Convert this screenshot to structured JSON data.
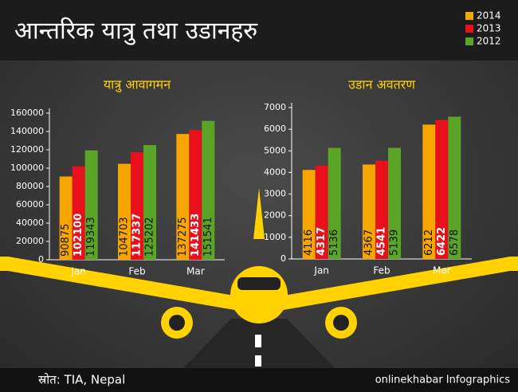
{
  "title": "आन्तरिक यात्रु तथा उडानहरु",
  "chart_data": [
    {
      "type": "bar",
      "title": "यात्रु आवागमन",
      "categories": [
        "Jan",
        "Feb",
        "Mar"
      ],
      "series": [
        {
          "name": "2014",
          "color": "#f7a600",
          "values": [
            90875,
            104703,
            137275
          ]
        },
        {
          "name": "2013",
          "color": "#e8101a",
          "values": [
            102100,
            117337,
            141433
          ]
        },
        {
          "name": "2012",
          "color": "#5aa428",
          "values": [
            119343,
            125202,
            151541
          ]
        }
      ],
      "ylim": [
        0,
        160000
      ],
      "yticks": [
        0,
        20000,
        40000,
        60000,
        80000,
        100000,
        120000,
        140000,
        160000
      ]
    },
    {
      "type": "bar",
      "title": "उडान अवतरण",
      "categories": [
        "Jan",
        "Feb",
        "Mar"
      ],
      "series": [
        {
          "name": "2014",
          "color": "#f7a600",
          "values": [
            4116,
            4367,
            6212
          ]
        },
        {
          "name": "2013",
          "color": "#e8101a",
          "values": [
            4317,
            4541,
            6422
          ]
        },
        {
          "name": "2012",
          "color": "#5aa428",
          "values": [
            5136,
            5139,
            6578
          ]
        }
      ],
      "ylim": [
        0,
        7000
      ],
      "yticks": [
        0,
        1000,
        2000,
        3000,
        4000,
        5000,
        6000,
        7000
      ]
    }
  ],
  "source": "स्रोत: TIA, Nepal",
  "credit": "onlinekhabar Infographics"
}
